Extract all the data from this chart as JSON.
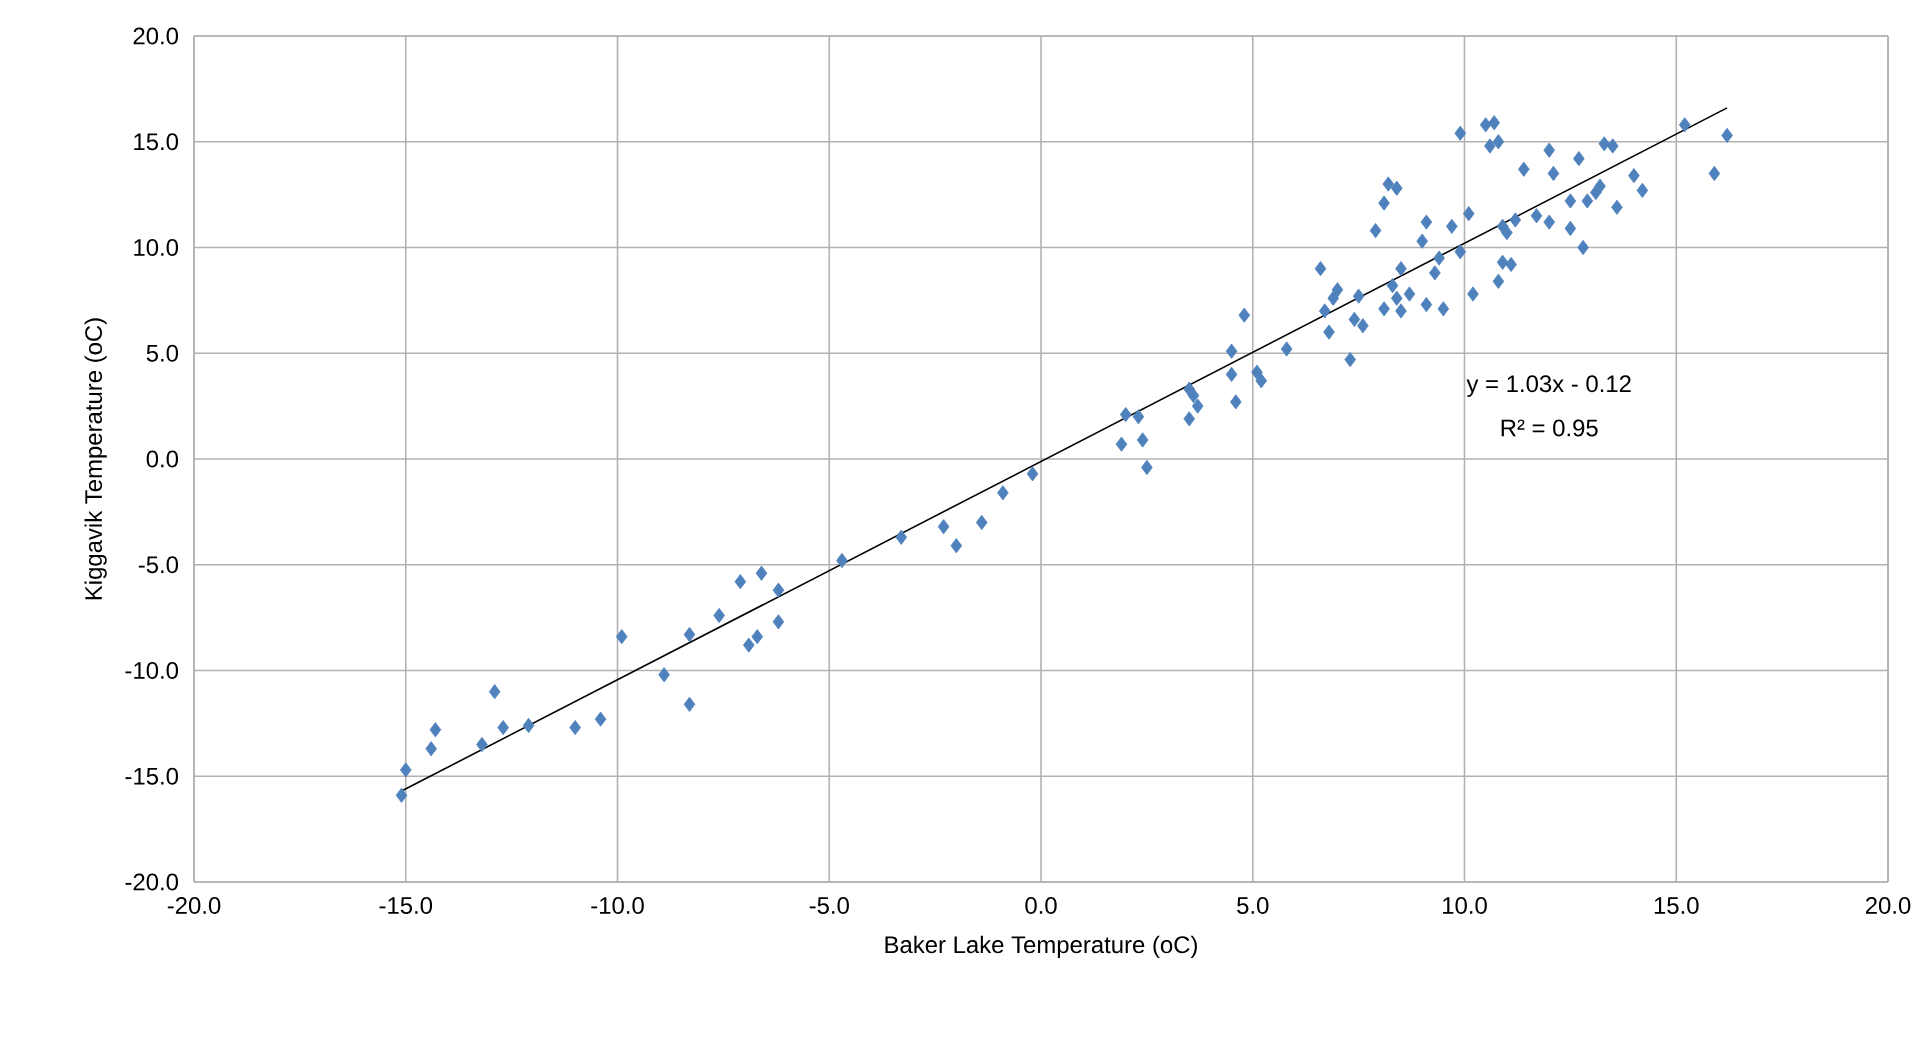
{
  "chart_data": {
    "type": "scatter",
    "xlabel": "Baker Lake Temperature (oC)",
    "ylabel": "Kiggavik Temperature (oC)",
    "annotations": [
      "y = 1.03x - 0.12",
      "R² = 0.95"
    ],
    "xlim": [
      -20,
      20
    ],
    "ylim": [
      -20,
      20
    ],
    "xticks": [
      {
        "value": -20,
        "label": "-20.0"
      },
      {
        "value": -15,
        "label": "-15.0"
      },
      {
        "value": -10,
        "label": "-10.0"
      },
      {
        "value": -5,
        "label": "-5.0"
      },
      {
        "value": 0,
        "label": "0.0"
      },
      {
        "value": 5,
        "label": "5.0"
      },
      {
        "value": 10,
        "label": "10.0"
      },
      {
        "value": 15,
        "label": "15.0"
      },
      {
        "value": 20,
        "label": "20.0"
      }
    ],
    "yticks": [
      {
        "value": -20,
        "label": "-20.0"
      },
      {
        "value": -15,
        "label": "-15.0"
      },
      {
        "value": -10,
        "label": "-10.0"
      },
      {
        "value": -5,
        "label": "-5.0"
      },
      {
        "value": 0,
        "label": "0.0"
      },
      {
        "value": 5,
        "label": "5.0"
      },
      {
        "value": 10,
        "label": "10.0"
      },
      {
        "value": 15,
        "label": "15.0"
      },
      {
        "value": 20,
        "label": "20.0"
      }
    ],
    "grid": true,
    "marker": "diamond",
    "series": [
      {
        "color": "#4f81bd",
        "x": [
          -15.1,
          -15.0,
          -14.4,
          -14.3,
          -13.2,
          -12.9,
          -12.7,
          -12.1,
          -11.0,
          -10.4,
          -9.9,
          -8.9,
          -8.3,
          -8.3,
          -7.6,
          -7.1,
          -6.9,
          -6.7,
          -6.6,
          -6.2,
          -6.2,
          -4.7,
          -3.3,
          -2.3,
          -2.0,
          -1.4,
          -0.9,
          -0.2,
          1.9,
          2.0,
          2.3,
          2.4,
          2.5,
          3.5,
          3.5,
          3.7,
          3.6,
          4.5,
          4.5,
          4.6,
          4.8,
          5.1,
          5.2,
          5.8,
          6.6,
          6.7,
          6.8,
          6.9,
          7.0,
          7.3,
          7.4,
          7.5,
          7.6,
          7.9,
          8.1,
          8.1,
          8.2,
          8.3,
          8.4,
          8.4,
          8.5,
          8.5,
          8.7,
          9.0,
          9.1,
          9.1,
          9.3,
          9.4,
          9.5,
          9.7,
          9.9,
          9.9,
          10.1,
          10.2,
          10.5,
          10.6,
          10.7,
          10.8,
          10.8,
          10.9,
          10.9,
          11.0,
          11.1,
          11.2,
          11.4,
          11.7,
          12.0,
          12.1,
          12.0,
          12.5,
          12.5,
          12.7,
          12.8,
          12.9,
          13.1,
          13.2,
          13.3,
          13.5,
          13.6,
          14.0,
          14.2,
          15.2,
          15.9,
          16.2
        ],
        "values": [
          -15.9,
          -14.7,
          -13.7,
          -12.8,
          -13.5,
          -11.0,
          -12.7,
          -12.6,
          -12.7,
          -12.3,
          -8.4,
          -10.2,
          -8.3,
          -11.6,
          -7.4,
          -5.8,
          -8.8,
          -8.4,
          -5.4,
          -7.7,
          -6.2,
          -4.8,
          -3.7,
          -3.2,
          -4.1,
          -3.0,
          -1.6,
          -0.7,
          0.7,
          2.1,
          2.0,
          0.9,
          -0.4,
          3.3,
          1.9,
          2.5,
          3.0,
          5.1,
          4.0,
          2.7,
          6.8,
          4.1,
          3.7,
          5.2,
          9.0,
          7.0,
          6.0,
          7.6,
          8.0,
          4.7,
          6.6,
          7.7,
          6.3,
          10.8,
          7.1,
          12.1,
          13.0,
          8.2,
          7.6,
          12.8,
          9.0,
          7.0,
          7.8,
          10.3,
          11.2,
          7.3,
          8.8,
          9.5,
          7.1,
          11.0,
          9.8,
          15.4,
          11.6,
          7.8,
          15.8,
          14.8,
          15.9,
          8.4,
          15.0,
          11.0,
          9.3,
          10.7,
          9.2,
          11.3,
          13.7,
          11.5,
          14.6,
          13.5,
          11.2,
          10.9,
          12.2,
          14.2,
          10.0,
          12.2,
          12.6,
          12.9,
          14.9,
          14.8,
          11.9,
          13.4,
          12.7,
          15.8,
          13.5,
          15.3
        ]
      },
      {
        "type": "line",
        "color": "#000000",
        "marker": "none",
        "x": [
          -15.1,
          16.2
        ],
        "values": [
          -15.7,
          16.6
        ]
      }
    ]
  }
}
